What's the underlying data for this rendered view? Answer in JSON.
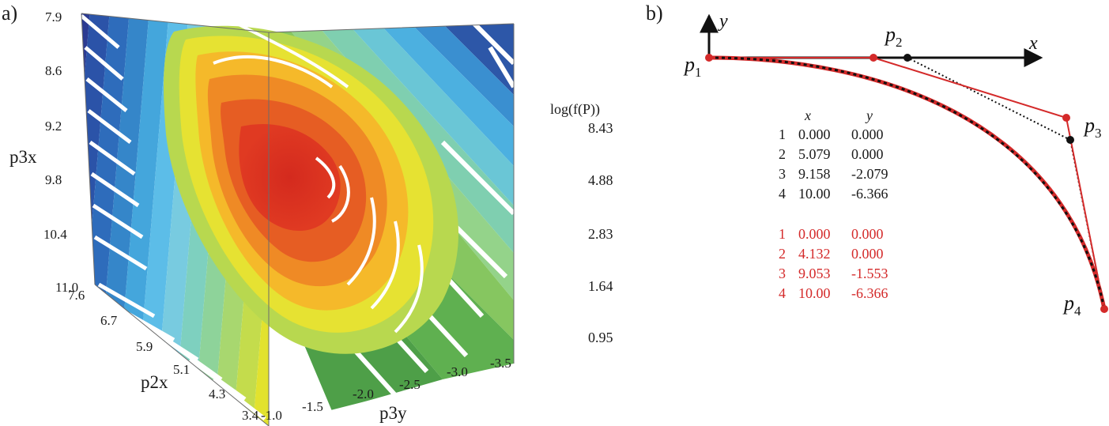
{
  "panel_a": {
    "label": "a)",
    "axes": {
      "p3x": {
        "name": "p3x",
        "ticks": [
          "7.9",
          "8.6",
          "9.2",
          "9.8",
          "10.4",
          "11.0"
        ]
      },
      "p2x": {
        "name": "p2x",
        "ticks": [
          "7.6",
          "6.7",
          "5.9",
          "5.1",
          "4.3",
          "3.4"
        ]
      },
      "p3y": {
        "name": "p3y",
        "ticks": [
          "-1.0",
          "-1.5",
          "-2.0",
          "-2.5",
          "-3.0",
          "-3.5"
        ]
      }
    },
    "colorbar": {
      "title": "log(f(P))",
      "ticks": [
        "8.43",
        "4.88",
        "2.83",
        "1.64",
        "0.95"
      ],
      "colors": [
        "#2c2f86",
        "#2d6fb8",
        "#4fb7e6",
        "#6dc8a6",
        "#a7d35a",
        "#e9e42a",
        "#f6a623",
        "#ea5a24",
        "#c2231e",
        "#8c1a14"
      ]
    }
  },
  "panel_b": {
    "label": "b)",
    "axis_labels": {
      "x": "x",
      "y": "y"
    },
    "points": {
      "p1": "p",
      "p1_sub": "1",
      "p2": "p",
      "p2_sub": "2",
      "p3": "p",
      "p3_sub": "3",
      "p4": "p",
      "p4_sub": "4"
    },
    "table_header": {
      "x": "x",
      "y": "y"
    },
    "black_rows": [
      {
        "i": "1",
        "x": "0.000",
        "y": "0.000"
      },
      {
        "i": "2",
        "x": "5.079",
        "y": "0.000"
      },
      {
        "i": "3",
        "x": "9.158",
        "y": "-2.079"
      },
      {
        "i": "4",
        "x": "10.00",
        "y": "-6.366"
      }
    ],
    "red_rows": [
      {
        "i": "1",
        "x": "0.000",
        "y": "0.000"
      },
      {
        "i": "2",
        "x": "4.132",
        "y": "0.000"
      },
      {
        "i": "3",
        "x": "9.053",
        "y": "-1.553"
      },
      {
        "i": "4",
        "x": "10.00",
        "y": "-6.366"
      }
    ],
    "colors": {
      "red": "#d42a2a",
      "black": "#111111"
    }
  }
}
